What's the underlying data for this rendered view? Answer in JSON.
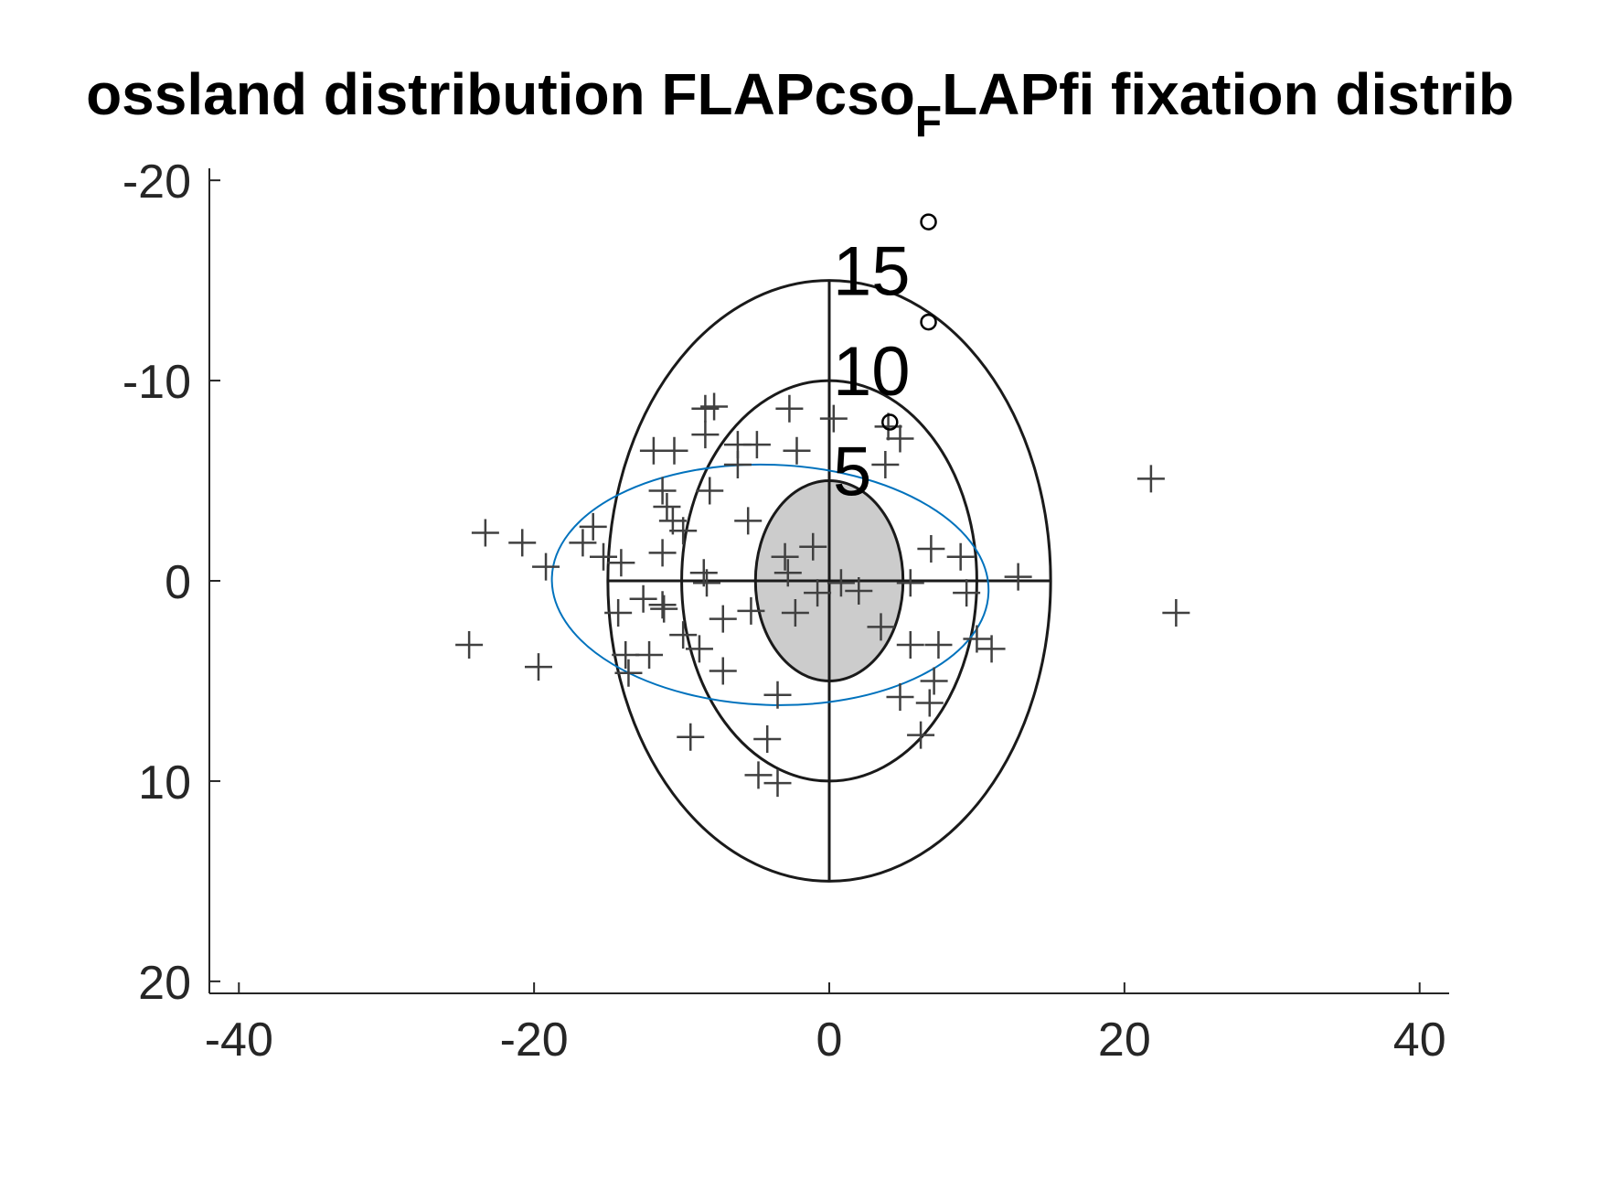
{
  "chart_data": {
    "type": "scatter",
    "title": "ossland distribution FLAPcso",
    "title_subscript": "F",
    "title_rest": "LAPfi fixation distrib",
    "xlim": [
      -42,
      42
    ],
    "ylim": [
      -20.6,
      20.6
    ],
    "y_reversed": true,
    "xticks": [
      -40,
      -20,
      0,
      20,
      40
    ],
    "yticks": [
      -20,
      -10,
      0,
      10,
      20
    ],
    "rings": [
      {
        "r": 15,
        "label": "15"
      },
      {
        "r": 10,
        "label": "10"
      },
      {
        "r": 5,
        "label": "5"
      }
    ],
    "ring_color": "#1a1a1a",
    "fill_radius": 5,
    "fill_color": "#cccccc",
    "ellipse": {
      "center": [
        -4,
        0.2
      ],
      "radii": [
        14.8,
        6
      ],
      "angle": 2,
      "color": "#0072bd"
    },
    "series": [
      {
        "color": "#404040",
        "x": [
          -24.4,
          -23.3,
          -20.8,
          -19.7,
          -19.2,
          -16.7,
          -16.0,
          -15.3,
          -14.1,
          -13.8,
          -13.6,
          -12.6,
          -11.9,
          -11.3,
          -11.0,
          -11.3,
          -11.3,
          -12.2,
          -10.5,
          -9.9,
          -9.9,
          -9.4,
          -8.4,
          -7.8,
          -8.4,
          -8.1,
          -8.5,
          -8.3,
          -8.8,
          -7.2,
          -7.2,
          -6.2,
          -5.5,
          -4.9,
          -5.3,
          -3.5,
          -4.2,
          -4.8,
          -3.5,
          -2.7,
          -2.2,
          -3.0,
          -2.8,
          -2.3,
          -1.1,
          -0.8,
          0.3,
          0.8,
          2.0,
          3.5,
          4.0,
          4.8,
          3.8,
          4.8,
          5.5,
          5.5,
          6.2,
          6.9,
          7.1,
          7.4,
          8.9,
          9.3,
          10.0,
          11.0,
          12.8,
          21.8,
          23.5,
          6.8,
          -10.6,
          -6.2,
          -14.3,
          -11.2
        ],
        "values": [
          3.2,
          -2.4,
          -1.9,
          4.3,
          -0.7,
          -1.9,
          -2.7,
          -1.2,
          -0.9,
          3.7,
          4.6,
          0.9,
          -6.5,
          -4.5,
          -3.7,
          -1.4,
          1.2,
          3.7,
          -6.5,
          -2.5,
          2.7,
          7.8,
          -8.6,
          -8.7,
          -7.3,
          -4.5,
          -0.4,
          0.1,
          3.4,
          1.9,
          4.5,
          -5.8,
          -3.0,
          -6.8,
          1.5,
          5.7,
          7.9,
          9.7,
          10.1,
          -8.6,
          -6.5,
          -1.2,
          -0.4,
          1.6,
          -1.7,
          0.6,
          -8.1,
          0.1,
          0.5,
          2.3,
          -7.7,
          -7.1,
          -5.8,
          5.8,
          0.1,
          3.2,
          7.7,
          -1.6,
          5.0,
          3.2,
          -1.2,
          0.6,
          2.9,
          3.4,
          -0.2,
          -5.1,
          1.6,
          6.1,
          -3.0,
          -6.8,
          1.6,
          1.4
        ]
      }
    ]
  }
}
